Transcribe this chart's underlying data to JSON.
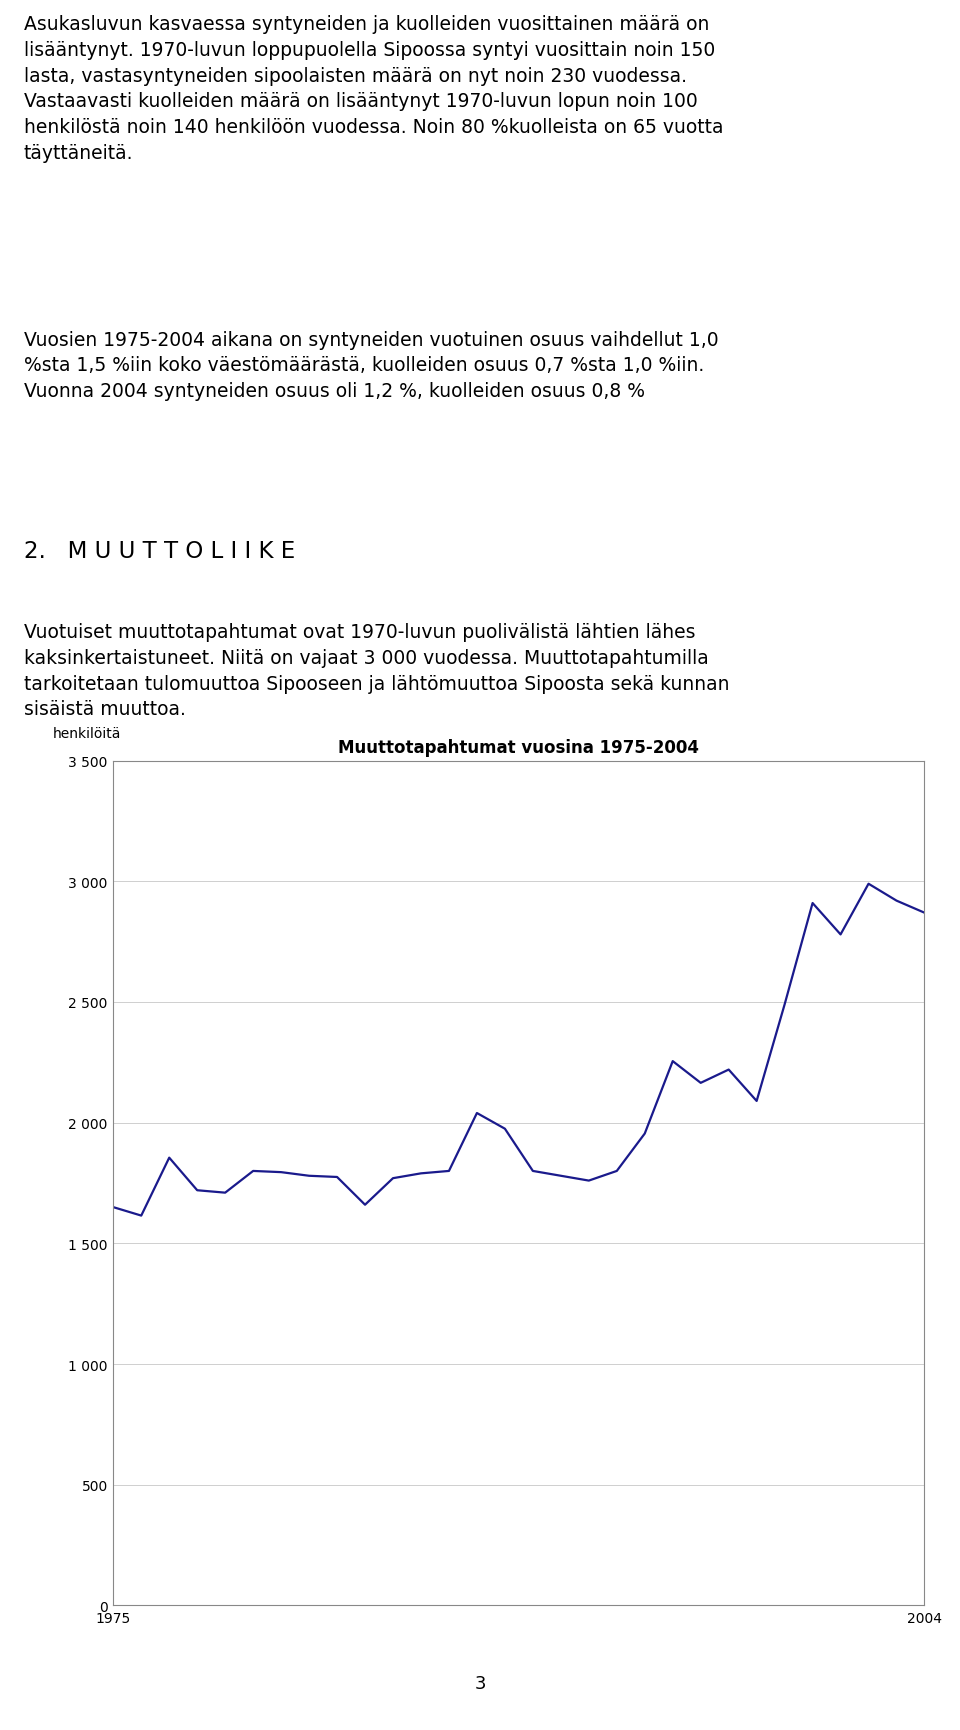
{
  "title": "Muuttotapahtumat vuosina 1975-2004",
  "ylabel": "henkilöitä",
  "background_color": "#ffffff",
  "line_color": "#1a1a8c",
  "line_width": 1.6,
  "ylim": [
    0,
    3500
  ],
  "yticks": [
    0,
    500,
    1000,
    1500,
    2000,
    2500,
    3000,
    3500
  ],
  "ytick_labels": [
    "0",
    "500",
    "1 000",
    "1 500",
    "2 000",
    "2 500",
    "3 000",
    "3 500"
  ],
  "xlim": [
    1975,
    2004
  ],
  "xtick_labels": [
    "1975",
    "2004"
  ],
  "years": [
    1975,
    1976,
    1977,
    1978,
    1979,
    1980,
    1981,
    1982,
    1983,
    1984,
    1985,
    1986,
    1987,
    1988,
    1989,
    1990,
    1991,
    1992,
    1993,
    1994,
    1995,
    1996,
    1997,
    1998,
    1999,
    2000,
    2001,
    2002,
    2003,
    2004
  ],
  "values": [
    1650,
    1615,
    1855,
    1720,
    1710,
    1800,
    1795,
    1780,
    1775,
    1660,
    1770,
    1790,
    1800,
    2040,
    1975,
    1800,
    1780,
    1760,
    1800,
    1955,
    2255,
    2165,
    2220,
    2090,
    2490,
    2910,
    2780,
    2990,
    2920,
    2870
  ],
  "para1": "Asukasluvun kasvaessa syntyneiden ja kuolleiden vuosittainen määrä on\nlisääntynyt. 1970-luvun loppupuolella Sipoossa syntyi vuosittain noin 150\nlasta, vastasyntyneiden sipoolaisten määrä on nyt noin 230 vuodessa.\nVastaavasti kuolleiden määrä on lisääntynyt 1970-luvun lopun noin 100\nhenkilöstä noin 140 henkilöön vuodessa. Noin 80 %kuolleista on 65 vuotta\ntäyttäneitä.",
  "para2": "Vuosien 1975-2004 aikana on syntyneiden vuotuinen osuus vaihdellut 1,0\n%sta 1,5 %iin koko väestömäärästä, kuolleiden osuus 0,7 %sta 1,0 %iin.\nVuonna 2004 syntyneiden osuus oli 1,2 %, kuolleiden osuus 0,8 %",
  "heading": "2.   M U U T T O L I I K E",
  "para3": "Vuotuiset muuttotapahtumat ovat 1970-luvun puolivälistä lähtien lähes\nkaksinkertaistuneet. Niitä on vajaat 3 000 vuodessa. Muuttotapahtumilla\ntarkoitetaan tulomuuttoa Sipooseen ja lähtömuuttoa Sipoosta sekä kunnan\nsisäistä muuttoa.",
  "page_number": "3",
  "text_fontsize": 13.5,
  "heading_fontsize": 16.5,
  "chart_title_fontsize": 12,
  "grid_color": "#c8c8c8",
  "grid_linewidth": 0.6,
  "chart_box_color": "#888888"
}
